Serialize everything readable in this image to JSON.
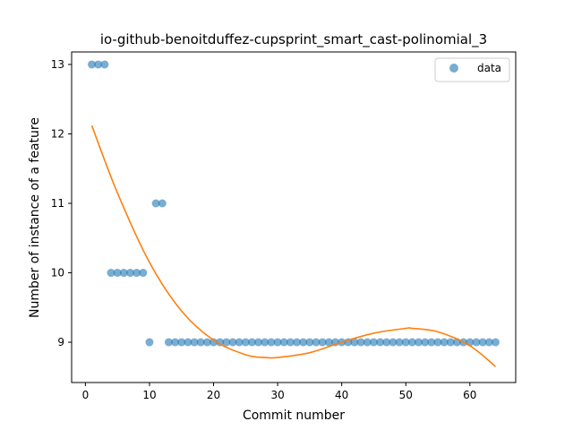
{
  "chart_data": {
    "type": "scatter",
    "title": "io-github-benoitduffez-cupsprint_smart_cast-polinomial_3",
    "xlabel": "Commit number",
    "ylabel": "Number of instance of a feature",
    "xlim": [
      -2.15,
      67.15
    ],
    "ylim": [
      8.42,
      13.18
    ],
    "xticks": [
      0,
      10,
      20,
      30,
      40,
      50,
      60
    ],
    "yticks": [
      9,
      10,
      11,
      12,
      13
    ],
    "grid": false,
    "legend": "top-right",
    "series": [
      {
        "name": "data",
        "kind": "scatter",
        "color": "#1f77b4",
        "x": [
          1,
          2,
          3,
          4,
          5,
          6,
          7,
          8,
          9,
          10,
          11,
          12,
          13,
          14,
          15,
          16,
          17,
          18,
          19,
          20,
          21,
          22,
          23,
          24,
          25,
          26,
          27,
          28,
          29,
          30,
          31,
          32,
          33,
          34,
          35,
          36,
          37,
          38,
          39,
          40,
          41,
          42,
          43,
          44,
          45,
          46,
          47,
          48,
          49,
          50,
          51,
          52,
          53,
          54,
          55,
          56,
          57,
          58,
          59,
          60,
          61,
          62,
          63,
          64
        ],
        "y": [
          13,
          13,
          13,
          10,
          10,
          10,
          10,
          10,
          10,
          9,
          11,
          11,
          9,
          9,
          9,
          9,
          9,
          9,
          9,
          9,
          9,
          9,
          9,
          9,
          9,
          9,
          9,
          9,
          9,
          9,
          9,
          9,
          9,
          9,
          9,
          9,
          9,
          9,
          9,
          9,
          9,
          9,
          9,
          9,
          9,
          9,
          9,
          9,
          9,
          9,
          9,
          9,
          9,
          9,
          9,
          9,
          9,
          9,
          9,
          9,
          9,
          9,
          9,
          9
        ]
      },
      {
        "kind": "fit-line",
        "color": "#ff7f0e",
        "x": [
          1,
          5,
          10,
          15,
          20,
          25,
          28,
          30,
          35,
          40,
          45,
          50,
          51,
          55,
          60,
          64
        ],
        "y": [
          12.12,
          11.15,
          10.15,
          9.45,
          9.03,
          8.82,
          8.78,
          8.78,
          8.85,
          9.0,
          9.13,
          9.2,
          9.2,
          9.15,
          8.95,
          8.65
        ]
      }
    ]
  }
}
